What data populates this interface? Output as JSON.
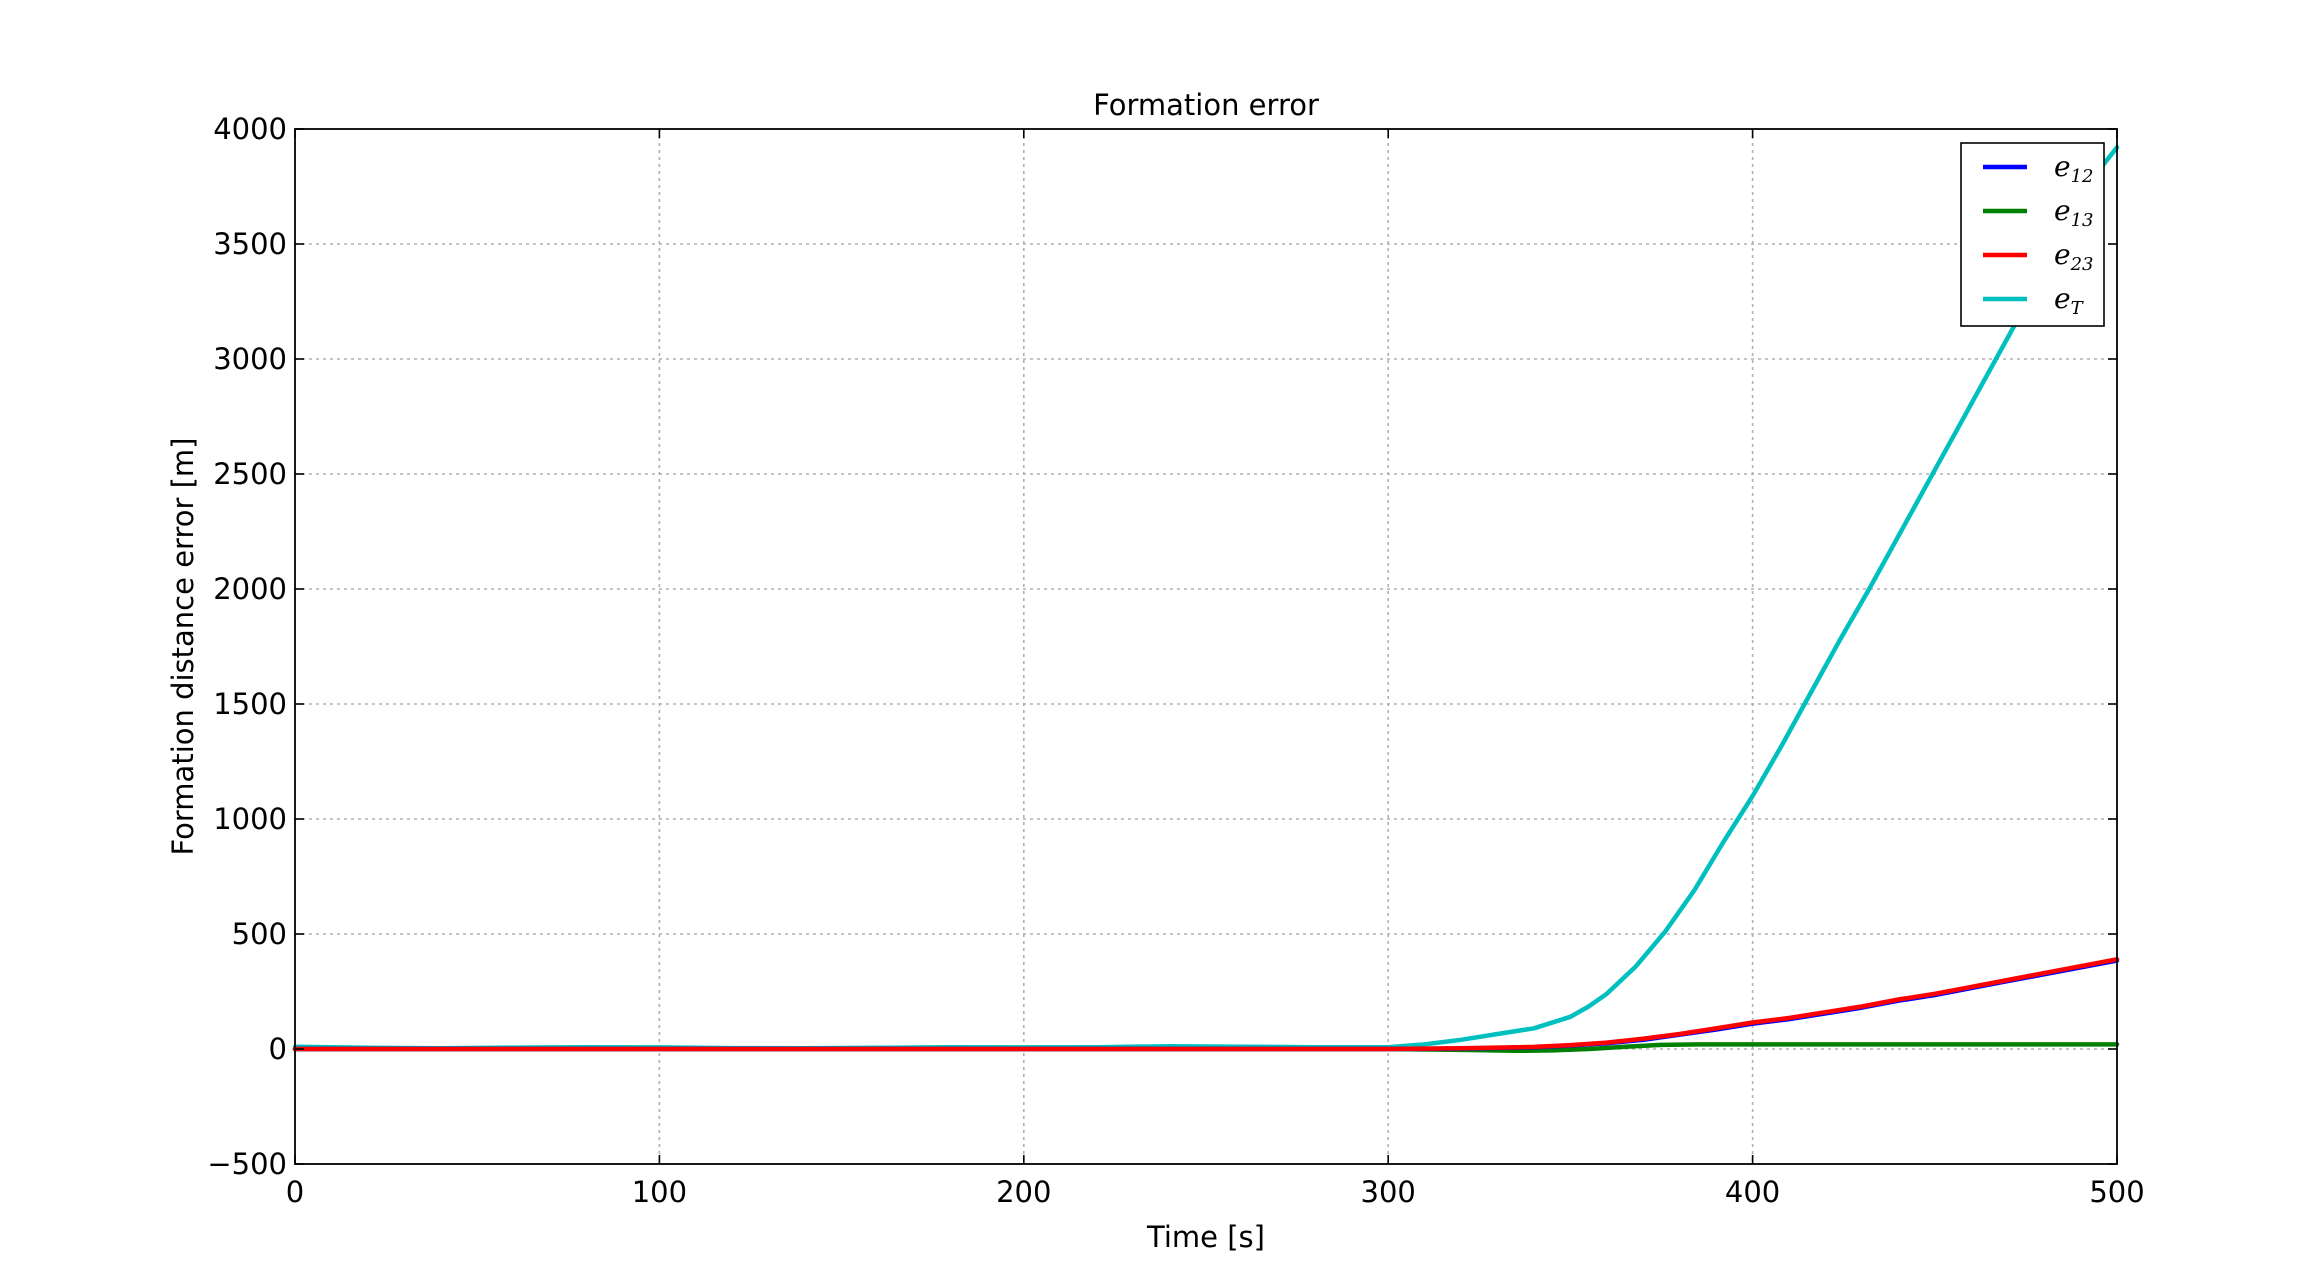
{
  "chart_data": {
    "type": "line",
    "title": "Formation error",
    "xlabel": "Time [s]",
    "ylabel": "Formation distance error [m]",
    "xlim": [
      0,
      500
    ],
    "ylim": [
      -500,
      4000
    ],
    "xticks": [
      0,
      100,
      200,
      300,
      400,
      500
    ],
    "xtick_labels": [
      "0",
      "100",
      "200",
      "300",
      "400",
      "500"
    ],
    "yticks": [
      -500,
      0,
      500,
      1000,
      1500,
      2000,
      2500,
      3000,
      3500,
      4000
    ],
    "ytick_labels": [
      "−500",
      "0",
      "500",
      "1000",
      "1500",
      "2000",
      "2500",
      "3000",
      "3500",
      "4000"
    ],
    "grid": true,
    "legend_position": "top-right",
    "series": [
      {
        "name": "e12",
        "legend_base": "e",
        "legend_sub": "12",
        "color": "#0000ff",
        "x": [
          0,
          50,
          100,
          150,
          200,
          250,
          300,
          320,
          340,
          350,
          360,
          370,
          380,
          390,
          400,
          410,
          420,
          430,
          440,
          450,
          460,
          470,
          480,
          490,
          500
        ],
        "y": [
          0,
          0,
          0,
          0,
          0,
          0,
          0,
          2,
          8,
          15,
          25,
          40,
          62,
          85,
          110,
          130,
          155,
          180,
          210,
          235,
          265,
          295,
          325,
          355,
          385
        ]
      },
      {
        "name": "e13",
        "legend_base": "e",
        "legend_sub": "13",
        "color": "#008000",
        "x": [
          0,
          50,
          100,
          150,
          200,
          250,
          300,
          320,
          335,
          345,
          355,
          365,
          375,
          385,
          400,
          450,
          500
        ],
        "y": [
          0,
          0,
          0,
          0,
          0,
          0,
          0,
          -4,
          -8,
          -6,
          0,
          10,
          18,
          20,
          20,
          20,
          20
        ]
      },
      {
        "name": "e23",
        "legend_base": "e",
        "legend_sub": "23",
        "color": "#ff0000",
        "x": [
          0,
          50,
          100,
          150,
          200,
          250,
          300,
          320,
          340,
          350,
          360,
          370,
          380,
          390,
          400,
          410,
          420,
          430,
          440,
          450,
          460,
          470,
          480,
          490,
          500
        ],
        "y": [
          0,
          0,
          0,
          0,
          0,
          0,
          0,
          3,
          9,
          17,
          28,
          45,
          65,
          90,
          115,
          135,
          160,
          185,
          215,
          240,
          270,
          300,
          330,
          360,
          390
        ]
      },
      {
        "name": "eT",
        "legend_base": "e",
        "legend_sub": "T",
        "color": "#00bfbf",
        "x": [
          0,
          20,
          40,
          60,
          80,
          100,
          120,
          140,
          160,
          180,
          200,
          220,
          240,
          260,
          280,
          300,
          310,
          320,
          330,
          340,
          350,
          355,
          360,
          368,
          376,
          384,
          392,
          400,
          408,
          416,
          424,
          432,
          440,
          448,
          456,
          464,
          472,
          480,
          488,
          496,
          500
        ],
        "y": [
          10,
          5,
          3,
          6,
          8,
          7,
          4,
          3,
          5,
          8,
          7,
          8,
          12,
          10,
          8,
          8,
          20,
          40,
          65,
          90,
          140,
          185,
          240,
          360,
          510,
          690,
          900,
          1100,
          1320,
          1550,
          1780,
          2000,
          2230,
          2460,
          2690,
          2920,
          3150,
          3380,
          3600,
          3840,
          3920
        ]
      }
    ]
  }
}
